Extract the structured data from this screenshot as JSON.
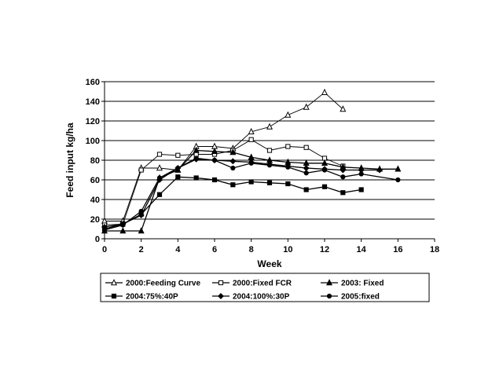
{
  "chart_data": {
    "type": "line",
    "xlabel": "Week",
    "ylabel": "Feed input kg/ha",
    "xlim": [
      0,
      18
    ],
    "ylim": [
      0,
      160
    ],
    "x_ticks": [
      0,
      2,
      4,
      6,
      8,
      10,
      12,
      14,
      16,
      18
    ],
    "y_ticks": [
      0,
      20,
      40,
      60,
      80,
      100,
      120,
      140,
      160
    ],
    "grid": "horizontal",
    "legend_position": "bottom",
    "series": [
      {
        "name": "2000:Feeding Curve",
        "marker": "triangle-open",
        "points": [
          [
            0,
            18
          ],
          [
            1,
            18
          ],
          [
            2,
            72
          ],
          [
            3,
            72
          ],
          [
            4,
            70
          ],
          [
            5,
            94
          ],
          [
            6,
            94
          ],
          [
            7,
            92
          ],
          [
            8,
            109
          ],
          [
            9,
            114
          ],
          [
            10,
            126
          ],
          [
            11,
            134
          ],
          [
            12,
            149
          ],
          [
            13,
            132
          ]
        ]
      },
      {
        "name": "2000:Fixed FCR",
        "marker": "square-open",
        "points": [
          [
            0,
            14
          ],
          [
            1,
            15
          ],
          [
            2,
            70
          ],
          [
            3,
            86
          ],
          [
            4,
            85
          ],
          [
            5,
            86
          ],
          [
            6,
            86
          ],
          [
            7,
            90
          ],
          [
            8,
            101
          ],
          [
            9,
            90
          ],
          [
            10,
            94
          ],
          [
            11,
            93
          ],
          [
            12,
            82
          ],
          [
            13,
            74
          ]
        ]
      },
      {
        "name": "2003: Fixed",
        "marker": "triangle-filled",
        "points": [
          [
            0,
            8
          ],
          [
            1,
            8
          ],
          [
            2,
            8
          ],
          [
            3,
            62
          ],
          [
            4,
            70
          ],
          [
            5,
            90
          ],
          [
            6,
            89
          ],
          [
            7,
            88
          ],
          [
            8,
            83
          ],
          [
            9,
            80
          ],
          [
            10,
            78
          ],
          [
            11,
            77
          ],
          [
            12,
            77
          ],
          [
            13,
            73
          ],
          [
            14,
            72
          ],
          [
            15,
            71
          ],
          [
            16,
            71
          ]
        ]
      },
      {
        "name": "2004:75%:40P",
        "marker": "square-filled",
        "points": [
          [
            0,
            10
          ],
          [
            1,
            15
          ],
          [
            2,
            25
          ],
          [
            3,
            45
          ],
          [
            4,
            63
          ],
          [
            5,
            62
          ],
          [
            6,
            60
          ],
          [
            7,
            55
          ],
          [
            8,
            58
          ],
          [
            9,
            57
          ],
          [
            10,
            56
          ],
          [
            11,
            50
          ],
          [
            12,
            53
          ],
          [
            13,
            47
          ],
          [
            14,
            50
          ]
        ]
      },
      {
        "name": "2004:100%:30P",
        "marker": "diamond-filled",
        "points": [
          [
            0,
            12
          ],
          [
            1,
            15
          ],
          [
            2,
            24
          ],
          [
            3,
            60
          ],
          [
            4,
            72
          ],
          [
            5,
            81
          ],
          [
            6,
            80
          ],
          [
            7,
            79
          ],
          [
            8,
            78
          ],
          [
            9,
            76
          ],
          [
            10,
            74
          ],
          [
            11,
            72
          ],
          [
            12,
            71
          ],
          [
            13,
            70
          ],
          [
            14,
            70
          ],
          [
            15,
            70
          ]
        ]
      },
      {
        "name": "2005:fixed",
        "marker": "circle-filled",
        "points": [
          [
            0,
            9
          ],
          [
            1,
            14
          ],
          [
            2,
            28
          ],
          [
            3,
            62
          ],
          [
            4,
            72
          ],
          [
            5,
            82
          ],
          [
            6,
            80
          ],
          [
            7,
            72
          ],
          [
            8,
            77
          ],
          [
            9,
            75
          ],
          [
            10,
            73
          ],
          [
            11,
            67
          ],
          [
            12,
            70
          ],
          [
            13,
            63
          ],
          [
            14,
            66
          ],
          [
            16,
            60
          ]
        ]
      }
    ]
  }
}
